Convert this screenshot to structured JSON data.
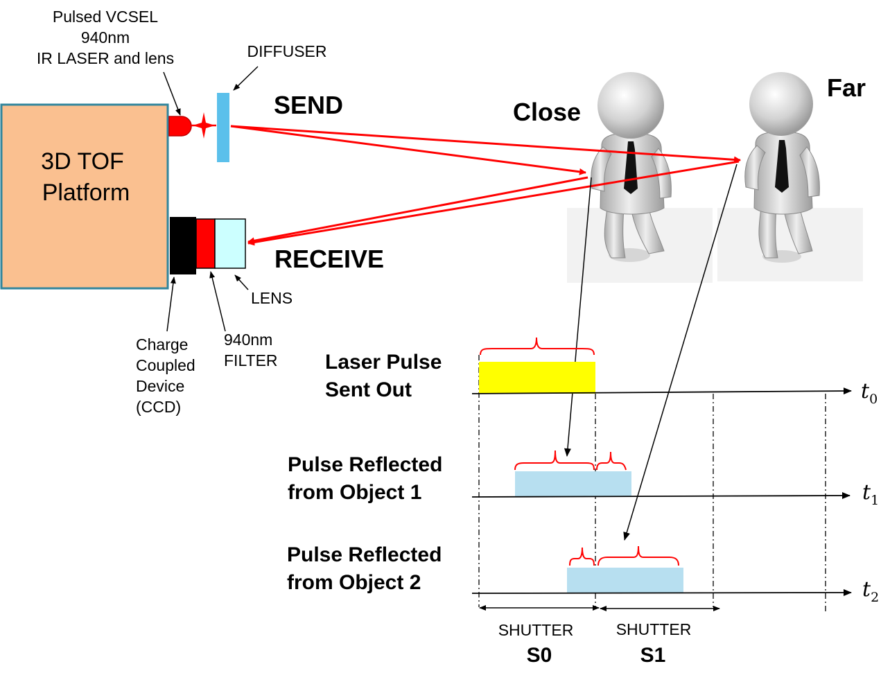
{
  "labels": {
    "vcsel_line1": "Pulsed VCSEL",
    "vcsel_line2": "940nm",
    "vcsel_line3": "IR LASER and lens",
    "diffuser": "DIFFUSER",
    "send": "SEND",
    "receive": "RECEIVE",
    "lens": "LENS",
    "platform_line1": "3D TOF",
    "platform_line2": "Platform",
    "ccd_line1": "Charge",
    "ccd_line2": "Coupled",
    "ccd_line3": "Device",
    "ccd_line4": "(CCD)",
    "filter_line1": "940nm",
    "filter_line2": "FILTER",
    "close": "Close",
    "far": "Far"
  },
  "timing": {
    "laser_line1": "Laser Pulse",
    "laser_line2": "Sent Out",
    "obj1_line1": "Pulse Reflected",
    "obj1_line2": "from Object 1",
    "obj2_line1": "Pulse Reflected",
    "obj2_line2": "from Object 2",
    "axis_t": "t",
    "sub0": "0",
    "sub1": "1",
    "sub2": "2",
    "shutter0_word": "SHUTTER",
    "shutter0_name": "S0",
    "shutter1_word": "SHUTTER",
    "shutter1_name": "S1"
  },
  "colors": {
    "platform_fill": "#fac090",
    "platform_border": "#31859c",
    "laser_red": "#ff0000",
    "diffuser_blue": "#5bc0eb",
    "ccd_black": "#000000",
    "lens_fill": "#ccffff",
    "pulse_yellow": "#ffff00",
    "pulse_blue": "#b7dff0"
  }
}
